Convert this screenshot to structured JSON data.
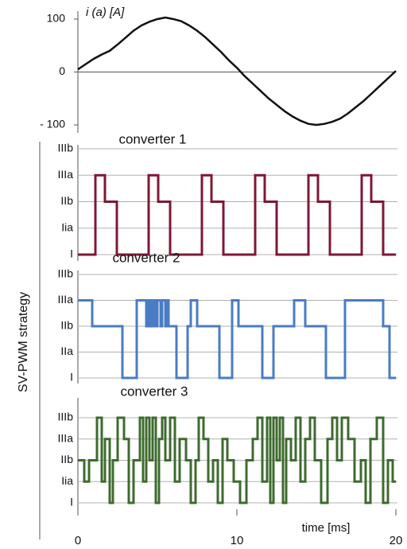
{
  "chart_data": [
    {
      "type": "line",
      "title": "i (a) [A]",
      "color": "#111111",
      "x": [
        0,
        0.5,
        1,
        1.5,
        2,
        2.5,
        3,
        3.5,
        4,
        4.5,
        5,
        5.5,
        6,
        6.5,
        7,
        7.5,
        8,
        8.5,
        9,
        9.5,
        10,
        10.5,
        11,
        11.5,
        12,
        12.5,
        13,
        13.5,
        14,
        14.5,
        15,
        15.5,
        16,
        16.5,
        17,
        17.5,
        18,
        18.5,
        19,
        19.5,
        20
      ],
      "values": [
        5,
        15,
        25,
        33,
        40,
        52,
        65,
        78,
        88,
        95,
        100,
        103,
        100,
        96,
        88,
        78,
        66,
        52,
        38,
        22,
        8,
        -8,
        -22,
        -36,
        -50,
        -62,
        -74,
        -84,
        -92,
        -98,
        -100,
        -98,
        -94,
        -88,
        -78,
        -66,
        -54,
        -40,
        -26,
        -12,
        2
      ],
      "xlim": [
        0,
        20
      ],
      "ylim": [
        -115,
        115
      ],
      "yticks": [
        {
          "value": -100,
          "label": "- 100"
        },
        0,
        100
      ]
    },
    {
      "type": "step",
      "title": "converter 1",
      "color": "#7f1734",
      "ylabel": "SV-PWM strategy",
      "x": [
        0,
        1.1,
        1.7,
        2.45,
        4.45,
        5.05,
        5.8,
        7.8,
        8.4,
        9.15,
        11.15,
        11.75,
        12.5,
        14.5,
        15.1,
        15.85,
        17.85,
        18.45,
        19.2,
        20
      ],
      "values": [
        0,
        3,
        2,
        0,
        3,
        2,
        0,
        3,
        2,
        0,
        3,
        2,
        0,
        3,
        2,
        0,
        3,
        2,
        0,
        0
      ],
      "xlim": [
        0,
        20
      ],
      "ylim": [
        0,
        4
      ],
      "grid": true,
      "yticks": [
        {
          "value": 0,
          "label": "I"
        },
        {
          "value": 1,
          "label": "Iia"
        },
        {
          "value": 2,
          "label": "IIb"
        },
        {
          "value": 3,
          "label": "IIIa"
        },
        {
          "value": 4,
          "label": "IIIb"
        }
      ]
    },
    {
      "type": "step",
      "title": "converter 2",
      "color": "#4a7cc4",
      "x": [
        0,
        0.9,
        2.8,
        3.7,
        4.3,
        4.4,
        4.5,
        4.6,
        4.7,
        4.8,
        4.9,
        5.0,
        5.2,
        5.3,
        5.5,
        5.6,
        5.7,
        6.2,
        6.9,
        7.1,
        7.5,
        8.9,
        9.7,
        10.1,
        11.6,
        12.3,
        13.6,
        14.3,
        15.6,
        16.8,
        19.2,
        19.6,
        20
      ],
      "values": [
        3,
        2,
        0,
        3,
        2,
        3,
        2,
        3,
        2,
        3,
        2,
        3,
        2,
        3,
        2,
        3,
        2,
        0,
        2,
        3,
        2,
        0,
        3,
        2,
        0,
        2,
        3,
        2,
        0,
        3,
        2,
        0,
        0
      ],
      "xlim": [
        0,
        20
      ],
      "ylim": [
        0,
        4
      ],
      "grid": true,
      "yticks": [
        {
          "value": 0,
          "label": "I"
        },
        {
          "value": 1,
          "label": "IIa"
        },
        {
          "value": 2,
          "label": "IIb"
        },
        {
          "value": 3,
          "label": "IIIa"
        },
        {
          "value": 4,
          "label": "IIIb"
        }
      ]
    },
    {
      "type": "step",
      "title": "converter 3",
      "color": "#3d6b2e",
      "xlabel": "time [ms]",
      "x": [
        0,
        0.4,
        0.7,
        1.2,
        1.5,
        1.7,
        2.0,
        2.2,
        2.5,
        2.9,
        3.2,
        3.5,
        3.9,
        4.1,
        4.3,
        4.5,
        4.7,
        4.9,
        5.1,
        5.3,
        5.5,
        5.8,
        6.1,
        6.4,
        6.8,
        7.1,
        7.4,
        7.6,
        7.9,
        8.2,
        8.5,
        8.8,
        9.1,
        9.4,
        9.8,
        10.2,
        10.6,
        11.0,
        11.3,
        11.6,
        11.9,
        12.1,
        12.3,
        12.5,
        12.7,
        12.9,
        13.1,
        13.4,
        13.7,
        14.0,
        14.3,
        14.6,
        14.9,
        15.3,
        15.7,
        16.0,
        16.3,
        16.6,
        17.0,
        17.4,
        17.8,
        18.1,
        18.4,
        18.8,
        19.2,
        19.5,
        19.8,
        20
      ],
      "values": [
        2,
        1,
        2,
        4,
        1,
        3,
        0,
        2,
        4,
        3,
        0,
        2,
        4,
        1,
        4,
        2,
        4,
        0,
        3,
        4,
        2,
        4,
        1,
        3,
        2,
        0,
        2,
        4,
        3,
        1,
        2,
        0,
        3,
        2,
        1,
        0,
        2,
        3,
        4,
        1,
        4,
        0,
        4,
        2,
        4,
        0,
        3,
        2,
        4,
        1,
        3,
        4,
        2,
        0,
        3,
        4,
        2,
        4,
        3,
        1,
        2,
        0,
        3,
        4,
        0,
        2,
        1,
        1
      ],
      "xlim": [
        0,
        20
      ],
      "ylim": [
        0,
        4
      ],
      "grid": true,
      "xticks": [
        0,
        10,
        20
      ],
      "yticks": [
        {
          "value": 0,
          "label": "I"
        },
        {
          "value": 1,
          "label": "Iia"
        },
        {
          "value": 2,
          "label": "IIb"
        },
        {
          "value": 3,
          "label": "IIIa"
        },
        {
          "value": 4,
          "label": "IIIb"
        }
      ]
    }
  ]
}
